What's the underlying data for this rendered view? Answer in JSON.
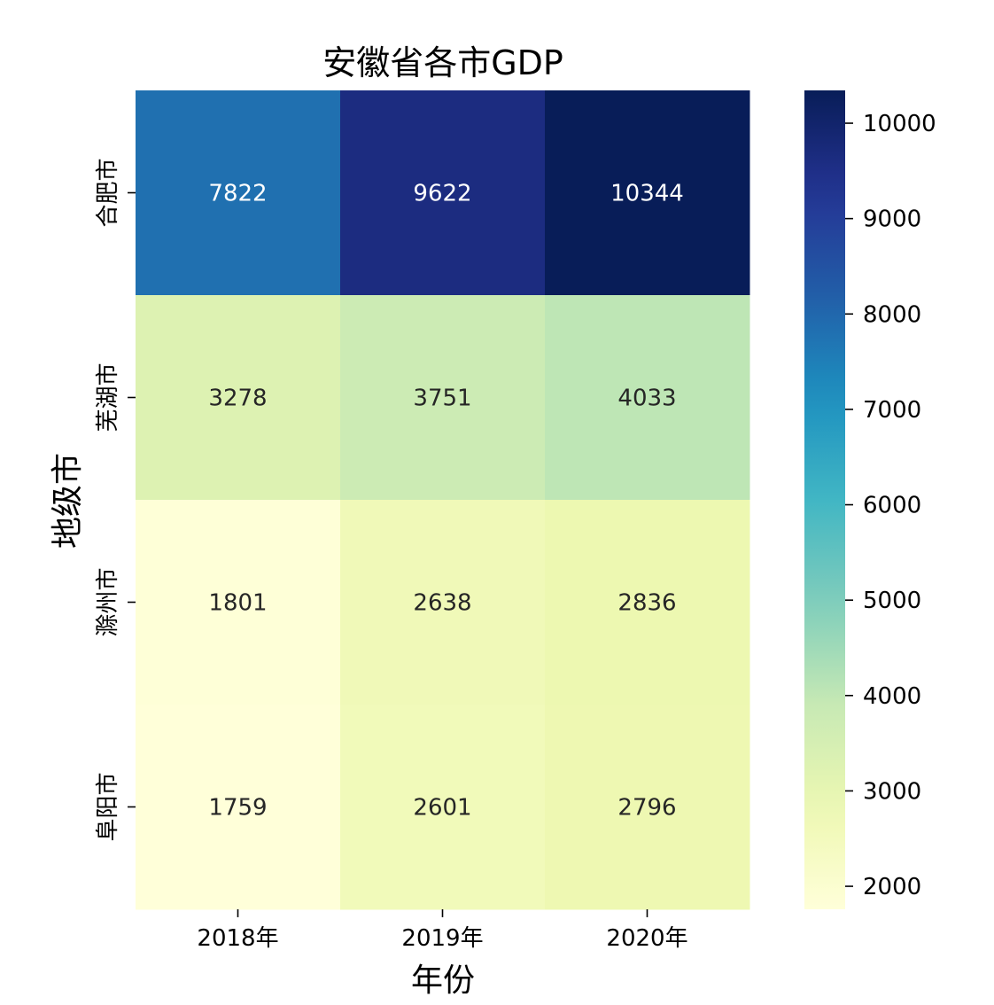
{
  "chart_data": {
    "type": "heatmap",
    "title": "安徽省各市GDP",
    "xlabel": "年份",
    "ylabel": "地级市",
    "x_categories": [
      "2018年",
      "2019年",
      "2020年"
    ],
    "y_categories": [
      "合肥市",
      "芜湖市",
      "滁州市",
      "阜阳市"
    ],
    "values": [
      [
        7822,
        9622,
        10344
      ],
      [
        3278,
        3751,
        4033
      ],
      [
        1801,
        2638,
        2836
      ],
      [
        1759,
        2601,
        2796
      ]
    ],
    "colormap": "YlGnBu",
    "color_range": [
      1759,
      10344
    ],
    "colorbar_ticks": [
      2000,
      3000,
      4000,
      5000,
      6000,
      7000,
      8000,
      9000,
      10000
    ],
    "annotations": true
  }
}
